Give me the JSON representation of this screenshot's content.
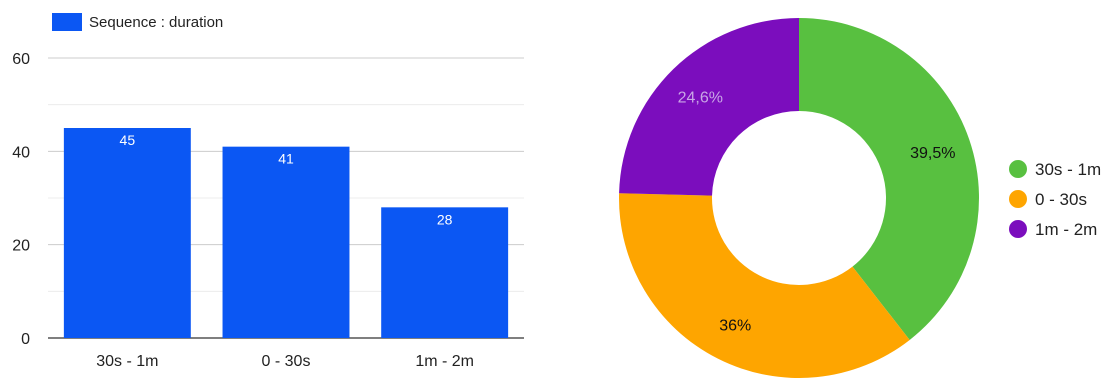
{
  "chart_data": [
    {
      "type": "bar",
      "categories": [
        "30s - 1m",
        "0 - 30s",
        "1m - 2m"
      ],
      "series": [
        {
          "name": "Sequence : duration",
          "values": [
            45,
            41,
            28
          ],
          "data_labels": [
            "45",
            "41",
            "28"
          ]
        }
      ],
      "ylim": [
        0,
        60
      ],
      "yticks": [
        0,
        20,
        40,
        60
      ],
      "grid": true,
      "legend": "top-left",
      "bar_color": "#0b57f3"
    },
    {
      "type": "pie",
      "donut": true,
      "slices": [
        {
          "label": "30s - 1m",
          "value": 39.5,
          "text": "39,5%",
          "color": "#58c040"
        },
        {
          "label": "0 - 30s",
          "value": 36,
          "text": "36%",
          "color": "#fea500"
        },
        {
          "label": "1m - 2m",
          "value": 24.6,
          "text": "24,6%",
          "color": "#7b0dbd"
        }
      ],
      "legend": "right"
    }
  ]
}
